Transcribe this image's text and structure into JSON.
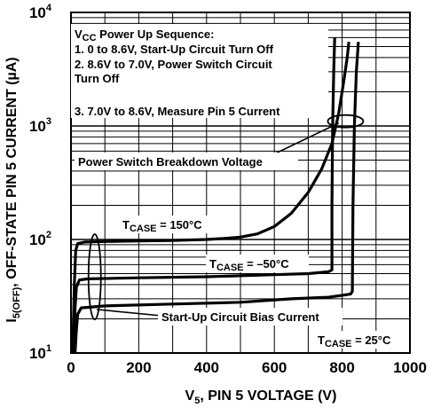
{
  "chart_data": {
    "type": "line",
    "title": "",
    "xlabel": {
      "main": "V",
      "sub": "5",
      "rest": ", PIN 5 VOLTAGE (V)"
    },
    "ylabel": {
      "main": "I",
      "sub": "5(OFF)",
      "rest": ", OFF-STATE PIN 5 CURRENT (µA)"
    },
    "xlim": [
      0,
      1000
    ],
    "ylim": [
      10,
      10000
    ],
    "yscale": "log",
    "grid": true,
    "x_ticks": [
      "0",
      "200",
      "400",
      "600",
      "800",
      "1000"
    ],
    "x_tick_values": [
      0,
      200,
      400,
      600,
      800,
      1000
    ],
    "y_ticks": [
      {
        "base": "10",
        "exp": "1",
        "value": 10
      },
      {
        "base": "10",
        "exp": "2",
        "value": 100
      },
      {
        "base": "10",
        "exp": "3",
        "value": 1000
      },
      {
        "base": "10",
        "exp": "4",
        "value": 10000
      }
    ],
    "series": [
      {
        "name": "T_CASE = 150°C",
        "points": [
          [
            5,
            10
          ],
          [
            10,
            40
          ],
          [
            14,
            80
          ],
          [
            20,
            92
          ],
          [
            40,
            95
          ],
          [
            100,
            96
          ],
          [
            200,
            97
          ],
          [
            300,
            98
          ],
          [
            400,
            100
          ],
          [
            450,
            102
          ],
          [
            500,
            105
          ],
          [
            550,
            112
          ],
          [
            600,
            130
          ],
          [
            650,
            170
          ],
          [
            700,
            260
          ],
          [
            740,
            420
          ],
          [
            770,
            700
          ],
          [
            790,
            1300
          ],
          [
            805,
            2500
          ],
          [
            815,
            4000
          ],
          [
            820,
            5500
          ]
        ]
      },
      {
        "name": "T_CASE = –50°C",
        "points": [
          [
            8,
            10
          ],
          [
            12,
            25
          ],
          [
            16,
            38
          ],
          [
            25,
            44
          ],
          [
            50,
            45
          ],
          [
            200,
            46
          ],
          [
            400,
            47
          ],
          [
            600,
            49
          ],
          [
            700,
            50
          ],
          [
            760,
            52
          ],
          [
            770,
            54
          ],
          [
            770,
            200
          ],
          [
            772,
            1000
          ],
          [
            775,
            3000
          ],
          [
            778,
            6000
          ]
        ]
      },
      {
        "name": "T_CASE = 25°C",
        "points": [
          [
            12,
            10
          ],
          [
            16,
            16
          ],
          [
            20,
            22
          ],
          [
            30,
            25
          ],
          [
            100,
            26
          ],
          [
            300,
            27
          ],
          [
            500,
            28
          ],
          [
            650,
            30
          ],
          [
            760,
            31
          ],
          [
            825,
            33
          ],
          [
            830,
            35
          ],
          [
            832,
            200
          ],
          [
            836,
            1000
          ],
          [
            842,
            3000
          ],
          [
            848,
            5500
          ]
        ]
      }
    ],
    "annotations": {
      "sequence_title": {
        "main": "V",
        "sub": "CC",
        "rest": " Power Up Sequence:"
      },
      "sequence_lines": [
        "1. 0 to 8.6V, Start-Up Circuit Turn Off",
        "2. 8.6V to 7.0V, Power Switch Circuit",
        "Turn Off",
        "3. 7.0V to 8.6V, Measure Pin 5 Current"
      ],
      "breakdown_label": "Power Switch Breakdown Voltage",
      "bias_label": "Start-Up Circuit Bias Current",
      "case_labels": [
        {
          "main": "T",
          "sub": "CASE",
          "rest": " = 150°C"
        },
        {
          "main": "T",
          "sub": "CASE",
          "rest": " = –50°C"
        },
        {
          "main": "T",
          "sub": "CASE",
          "rest": " = 25°C"
        }
      ]
    }
  }
}
